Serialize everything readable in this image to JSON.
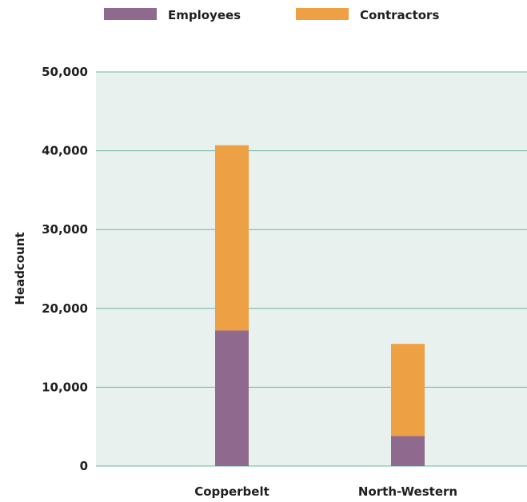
{
  "colors": {
    "plot_background": "#e8f1ee",
    "gridline": "#6fb5a0",
    "employees": "#8f6a8e",
    "contractors": "#eea044"
  },
  "chart_data": {
    "type": "bar",
    "stacked": true,
    "categories": [
      "Copperbelt",
      "North-Western"
    ],
    "series": [
      {
        "name": "Employees",
        "values": [
          17200,
          3800
        ]
      },
      {
        "name": "Contractors",
        "values": [
          23500,
          11700
        ]
      }
    ],
    "title": "",
    "xlabel": "",
    "ylabel": "Headcount",
    "ylim": [
      0,
      50000
    ],
    "yticks": [
      0,
      10000,
      20000,
      30000,
      40000,
      50000
    ],
    "ytick_labels": [
      "0",
      "10,000",
      "20,000",
      "30,000",
      "40,000",
      "50,000"
    ],
    "grid": "horizontal",
    "legend_position": "top"
  }
}
